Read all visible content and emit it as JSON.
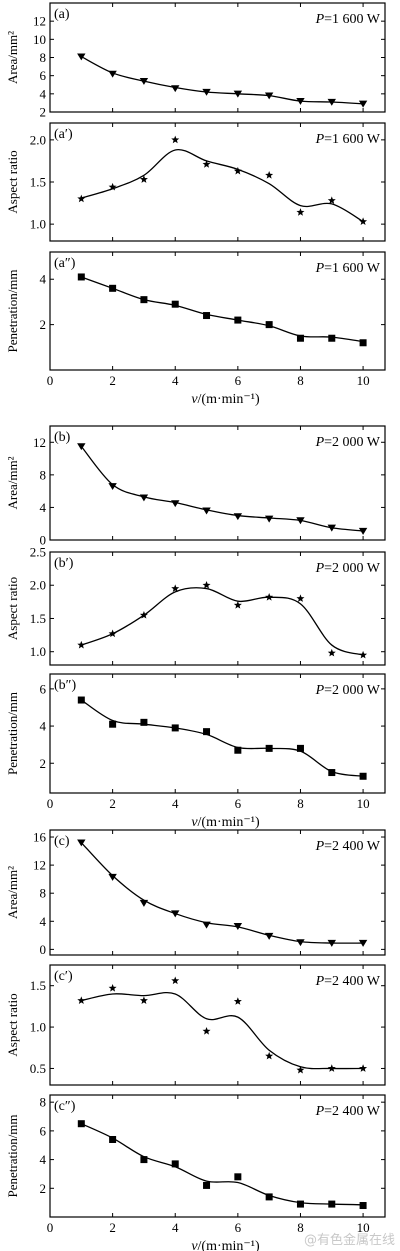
{
  "watermark": "@有色金属在线",
  "chart_data": [
    {
      "type": "line",
      "panel": "(a)",
      "power_label": "P=1 600 W",
      "ylabel": "Area/mm²",
      "marker": "triangle",
      "ylim": [
        2,
        14
      ],
      "yticks": [
        2,
        4,
        6,
        8,
        10,
        12
      ],
      "x": [
        1,
        2,
        3,
        4,
        5,
        6,
        7,
        8,
        9,
        10
      ],
      "values": [
        8.1,
        6.2,
        5.4,
        4.6,
        4.2,
        4.0,
        3.8,
        3.2,
        3.1,
        2.9
      ],
      "curve": [
        [
          1,
          8.1
        ],
        [
          2,
          6.3
        ],
        [
          3,
          5.4
        ],
        [
          4,
          4.7
        ],
        [
          5,
          4.2
        ],
        [
          6,
          4.0
        ],
        [
          7,
          3.8
        ],
        [
          8,
          3.2
        ],
        [
          9,
          3.1
        ],
        [
          10,
          2.9
        ]
      ],
      "xlim": [
        0,
        10.7
      ],
      "show_x_ticks": false
    },
    {
      "type": "line",
      "panel": "(a′)",
      "power_label": "P=1 600 W",
      "ylabel": "Aspect ratio",
      "marker": "star",
      "ylim": [
        0.8,
        2.2
      ],
      "yticks": [
        1.0,
        1.5,
        2.0
      ],
      "x": [
        1,
        2,
        3,
        4,
        5,
        6,
        7,
        8,
        9,
        10
      ],
      "values": [
        1.3,
        1.44,
        1.53,
        2.0,
        1.71,
        1.63,
        1.58,
        1.14,
        1.28,
        1.03
      ],
      "curve": [
        [
          1,
          1.31
        ],
        [
          2,
          1.42
        ],
        [
          3,
          1.58
        ],
        [
          4,
          1.88
        ],
        [
          5,
          1.75
        ],
        [
          6,
          1.65
        ],
        [
          7,
          1.48
        ],
        [
          8,
          1.22
        ],
        [
          9,
          1.24
        ],
        [
          10,
          1.03
        ]
      ],
      "xlim": [
        0,
        10.7
      ],
      "show_x_ticks": false
    },
    {
      "type": "line",
      "panel": "(a″)",
      "power_label": "P=1 600 W",
      "ylabel": "Penetration/mm",
      "marker": "square",
      "ylim": [
        0,
        5.2
      ],
      "yticks": [
        2,
        4
      ],
      "x": [
        1,
        2,
        3,
        4,
        5,
        6,
        7,
        8,
        9,
        10
      ],
      "values": [
        4.1,
        3.6,
        3.1,
        2.9,
        2.4,
        2.2,
        2.0,
        1.4,
        1.4,
        1.2
      ],
      "curve": [
        [
          1,
          4.1
        ],
        [
          2,
          3.6
        ],
        [
          3,
          3.1
        ],
        [
          4,
          2.85
        ],
        [
          5,
          2.45
        ],
        [
          6,
          2.2
        ],
        [
          7,
          1.95
        ],
        [
          8,
          1.5
        ],
        [
          9,
          1.45
        ],
        [
          10,
          1.25
        ]
      ],
      "xlim": [
        0,
        10.7
      ],
      "show_x_ticks": true,
      "xticks": [
        0,
        2,
        4,
        6,
        8,
        10
      ],
      "xlabel": "v/(m·min⁻¹)"
    },
    {
      "type": "line",
      "panel": "(b)",
      "power_label": "P=2 000 W",
      "ylabel": "Area/mm²",
      "marker": "triangle",
      "ylim": [
        0,
        14
      ],
      "yticks": [
        0,
        4,
        8,
        12
      ],
      "x": [
        1,
        2,
        3,
        4,
        5,
        6,
        7,
        8,
        9,
        10
      ],
      "values": [
        11.5,
        6.6,
        5.2,
        4.5,
        3.6,
        2.9,
        2.6,
        2.4,
        1.5,
        1.1
      ],
      "curve": [
        [
          1,
          11.5
        ],
        [
          2,
          6.8
        ],
        [
          3,
          5.3
        ],
        [
          4,
          4.6
        ],
        [
          5,
          3.7
        ],
        [
          6,
          3.0
        ],
        [
          7,
          2.7
        ],
        [
          8,
          2.4
        ],
        [
          9,
          1.5
        ],
        [
          10,
          1.1
        ]
      ],
      "xlim": [
        0,
        10.7
      ],
      "show_x_ticks": false
    },
    {
      "type": "line",
      "panel": "(b′)",
      "power_label": "P=2 000 W",
      "ylabel": "Aspect ratio",
      "marker": "star",
      "ylim": [
        0.8,
        2.5
      ],
      "yticks": [
        1.0,
        1.5,
        2.0,
        2.5
      ],
      "x": [
        1,
        2,
        3,
        4,
        5,
        6,
        7,
        8,
        9,
        10
      ],
      "values": [
        1.1,
        1.27,
        1.55,
        1.95,
        2.0,
        1.7,
        1.82,
        1.8,
        0.98,
        0.95
      ],
      "curve": [
        [
          1,
          1.1
        ],
        [
          2,
          1.27
        ],
        [
          3,
          1.55
        ],
        [
          4,
          1.9
        ],
        [
          5,
          1.95
        ],
        [
          6,
          1.76
        ],
        [
          7,
          1.82
        ],
        [
          8,
          1.72
        ],
        [
          9,
          1.1
        ],
        [
          10,
          0.95
        ]
      ],
      "xlim": [
        0,
        10.7
      ],
      "show_x_ticks": false
    },
    {
      "type": "line",
      "panel": "(b″)",
      "power_label": "P=2 000 W",
      "ylabel": "Penetration/mm",
      "marker": "square",
      "ylim": [
        0.4,
        6.8
      ],
      "yticks": [
        2,
        4,
        6
      ],
      "x": [
        1,
        2,
        3,
        4,
        5,
        6,
        7,
        8,
        9,
        10
      ],
      "values": [
        5.4,
        4.1,
        4.2,
        3.9,
        3.7,
        2.7,
        2.8,
        2.8,
        1.5,
        1.3
      ],
      "curve": [
        [
          1,
          5.4
        ],
        [
          2,
          4.3
        ],
        [
          3,
          4.1
        ],
        [
          4,
          3.9
        ],
        [
          5,
          3.55
        ],
        [
          6,
          2.85
        ],
        [
          7,
          2.8
        ],
        [
          8,
          2.65
        ],
        [
          9,
          1.55
        ],
        [
          10,
          1.3
        ]
      ],
      "xlim": [
        0,
        10.7
      ],
      "show_x_ticks": true,
      "xticks": [
        0,
        2,
        4,
        6,
        8,
        10
      ],
      "xlabel": "v/(m·min⁻¹)"
    },
    {
      "type": "line",
      "panel": "(c)",
      "power_label": "P=2 400 W",
      "ylabel": "Area/mm²",
      "marker": "triangle",
      "ylim": [
        -0.8,
        17
      ],
      "yticks": [
        0,
        4,
        8,
        12,
        16
      ],
      "x": [
        1,
        2,
        3,
        4,
        5,
        6,
        7,
        8,
        9,
        10
      ],
      "values": [
        15.2,
        10.3,
        6.6,
        5.1,
        3.5,
        3.3,
        1.9,
        1.0,
        0.9,
        0.9
      ],
      "curve": [
        [
          1,
          15.2
        ],
        [
          2,
          10.5
        ],
        [
          3,
          7.0
        ],
        [
          4,
          5.1
        ],
        [
          5,
          3.8
        ],
        [
          6,
          3.2
        ],
        [
          7,
          2.0
        ],
        [
          8,
          1.1
        ],
        [
          9,
          0.9
        ],
        [
          10,
          0.9
        ]
      ],
      "xlim": [
        0,
        10.7
      ],
      "show_x_ticks": false
    },
    {
      "type": "line",
      "panel": "(c′)",
      "power_label": "P=2 400 W",
      "ylabel": "Aspect ratio",
      "marker": "star",
      "ylim": [
        0.3,
        1.75
      ],
      "yticks": [
        0.5,
        1.0,
        1.5
      ],
      "x": [
        1,
        2,
        3,
        4,
        5,
        6,
        7,
        8,
        9,
        10
      ],
      "values": [
        1.32,
        1.47,
        1.32,
        1.56,
        0.95,
        1.31,
        0.65,
        0.48,
        0.5,
        0.5
      ],
      "curve": [
        [
          1,
          1.32
        ],
        [
          2,
          1.4
        ],
        [
          3,
          1.38
        ],
        [
          4,
          1.4
        ],
        [
          5,
          1.1
        ],
        [
          6,
          1.12
        ],
        [
          7,
          0.72
        ],
        [
          8,
          0.52
        ],
        [
          9,
          0.5
        ],
        [
          10,
          0.5
        ]
      ],
      "xlim": [
        0,
        10.7
      ],
      "show_x_ticks": false
    },
    {
      "type": "line",
      "panel": "(c″)",
      "power_label": "P=2 400 W",
      "ylabel": "Penetration/mm",
      "marker": "square",
      "ylim": [
        0,
        8.5
      ],
      "yticks": [
        2,
        4,
        6,
        8
      ],
      "x": [
        1,
        2,
        3,
        4,
        5,
        6,
        7,
        8,
        9,
        10
      ],
      "values": [
        6.5,
        5.4,
        4.0,
        3.7,
        2.2,
        2.8,
        1.4,
        0.9,
        0.9,
        0.8
      ],
      "curve": [
        [
          1,
          6.5
        ],
        [
          2,
          5.5
        ],
        [
          3,
          4.2
        ],
        [
          4,
          3.5
        ],
        [
          5,
          2.5
        ],
        [
          6,
          2.4
        ],
        [
          7,
          1.5
        ],
        [
          8,
          1.0
        ],
        [
          9,
          0.9
        ],
        [
          10,
          0.85
        ]
      ],
      "xlim": [
        0,
        10.7
      ],
      "show_x_ticks": true,
      "xticks": [
        0,
        2,
        4,
        6,
        8,
        10
      ],
      "xlabel": "v/(m·min⁻¹)"
    }
  ]
}
